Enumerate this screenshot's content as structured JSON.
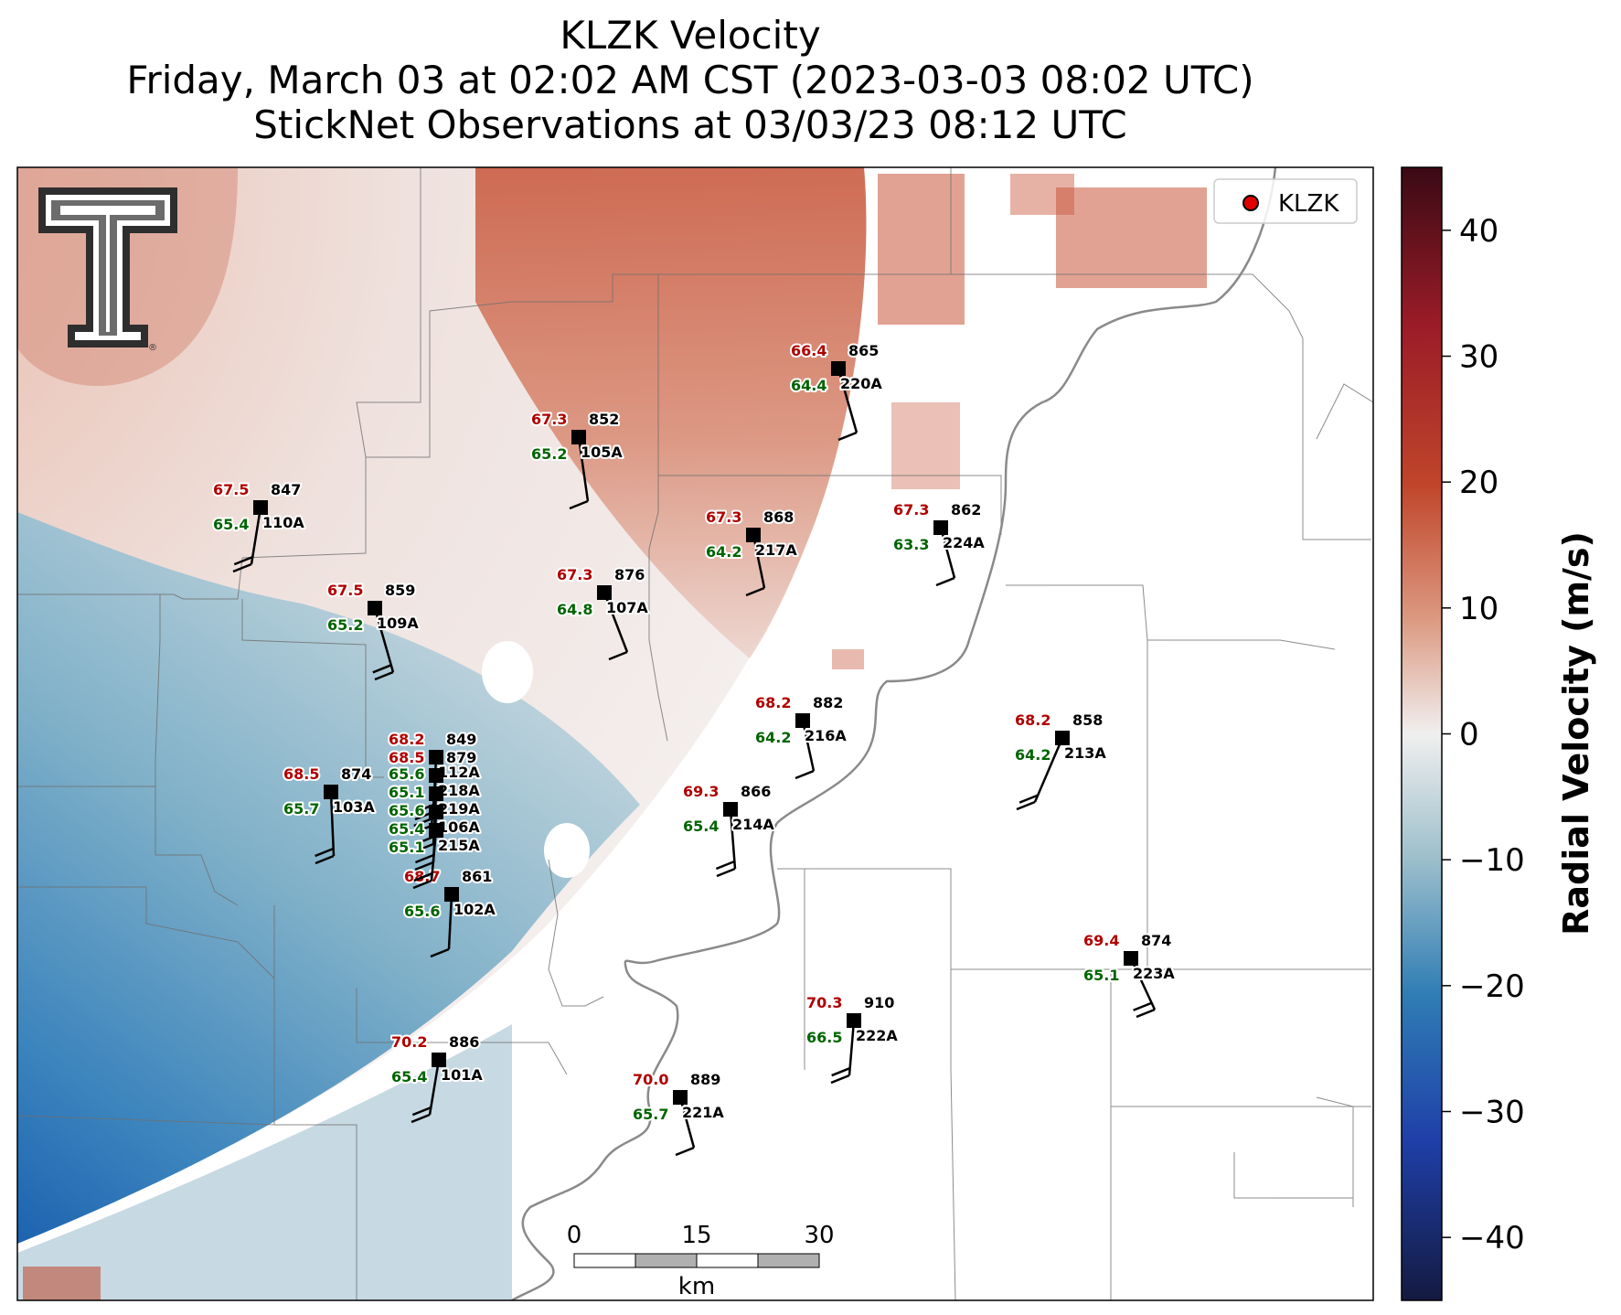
{
  "title": {
    "line1": "KLZK Velocity",
    "line2": "Friday, March 03 at 02:02 AM CST (2023-03-03 08:02 UTC)",
    "line3": "StickNet Observations at 03/03/23 08:12 UTC"
  },
  "legend": {
    "label": "KLZK",
    "marker_color": "#e00000"
  },
  "colorbar": {
    "label": "Radial Velocity (m/s)",
    "ticks": [
      "40",
      "30",
      "20",
      "10",
      "0",
      "−10",
      "−20",
      "−30",
      "−40"
    ],
    "range": [
      -45,
      45
    ],
    "colors": {
      "low": "#141a40",
      "neg": "#2b6cb0",
      "zero": "#f0efef",
      "pos": "#c0452a",
      "high": "#3a0a14"
    }
  },
  "scalebar": {
    "labels": [
      "0",
      "15",
      "30"
    ],
    "unit": "km"
  },
  "logo": {
    "name": "texas-tech-double-t-logo",
    "mark": "®"
  },
  "stations": [
    {
      "id": "220A",
      "press": "865",
      "temp": "66.4",
      "dew": "64.4"
    },
    {
      "id": "105A",
      "press": "852",
      "temp": "67.3",
      "dew": "65.2"
    },
    {
      "id": "110A",
      "press": "847",
      "temp": "67.5",
      "dew": "65.4"
    },
    {
      "id": "217A",
      "press": "868",
      "temp": "67.3",
      "dew": "64.2"
    },
    {
      "id": "224A",
      "press": "862",
      "temp": "67.3",
      "dew": "63.3"
    },
    {
      "id": "109A",
      "press": "859",
      "temp": "67.5",
      "dew": "65.2"
    },
    {
      "id": "107A",
      "press": "876",
      "temp": "67.3",
      "dew": "64.8"
    },
    {
      "id": "216A",
      "press": "882",
      "temp": "68.2",
      "dew": "64.2"
    },
    {
      "id": "213A",
      "press": "858",
      "temp": "68.2",
      "dew": "64.2"
    },
    {
      "id": "103A",
      "press": "874",
      "temp": "68.5",
      "dew": "65.7"
    },
    {
      "id": "214A",
      "press": "866",
      "temp": "69.3",
      "dew": "65.4"
    },
    {
      "id": "102A",
      "press": "861",
      "temp": "68.7",
      "dew": "65.6"
    },
    {
      "id": "223A",
      "press": "874",
      "temp": "69.4",
      "dew": "65.1"
    },
    {
      "id": "222A",
      "press": "910",
      "temp": "70.3",
      "dew": "66.5"
    },
    {
      "id": "101A",
      "press": "886",
      "temp": "70.2",
      "dew": "65.4"
    },
    {
      "id": "221A",
      "press": "889",
      "temp": "70.0",
      "dew": "65.7"
    },
    {
      "id": "112A",
      "press": "849",
      "temp": "68.2",
      "dew": "65.6"
    },
    {
      "id": "218A",
      "press": "879",
      "temp": "68.5",
      "dew": "65.1"
    },
    {
      "id": "219A",
      "press": "",
      "temp": "",
      "dew": "65.6"
    },
    {
      "id": "106A",
      "press": "",
      "temp": "",
      "dew": "65.4"
    },
    {
      "id": "215A",
      "press": "",
      "temp": "",
      "dew": "65.1"
    }
  ]
}
